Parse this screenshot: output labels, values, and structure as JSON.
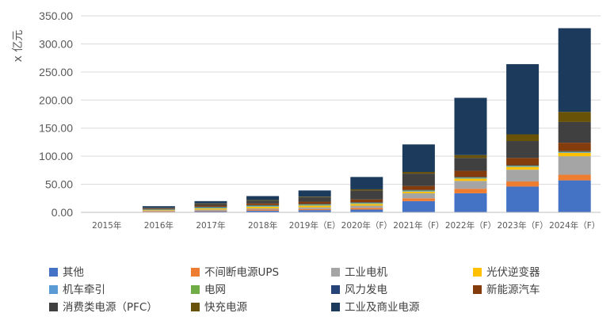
{
  "chart_data": {
    "type": "bar",
    "stacked": true,
    "ylabel": "x 亿元",
    "ylim": [
      0,
      350
    ],
    "yticks": [
      "0.00",
      "50.00",
      "100.00",
      "150.00",
      "200.00",
      "250.00",
      "300.00",
      "350.00"
    ],
    "grid": true,
    "legend_position": "bottom",
    "categories": [
      "2015年",
      "2016年",
      "2017年",
      "2018年",
      "2019年（E）",
      "2020年（F）",
      "2021年（F）",
      "2022年（F）",
      "2023年（F）",
      "2024年（F）"
    ],
    "series": [
      {
        "name": "其他",
        "color": "#4472C4",
        "values": [
          0,
          1,
          2,
          3,
          4,
          5,
          20,
          34,
          46,
          57
        ]
      },
      {
        "name": "不间断电源UPS",
        "color": "#ED7D31",
        "values": [
          0,
          1,
          1,
          2,
          2,
          3,
          5,
          8,
          9,
          10
        ]
      },
      {
        "name": "工业电机",
        "color": "#A5A5A5",
        "values": [
          0,
          1,
          2,
          2,
          3,
          4,
          9,
          14,
          21,
          33
        ]
      },
      {
        "name": "光伏逆变器",
        "color": "#FFC000",
        "values": [
          0,
          1,
          2,
          3,
          3,
          3,
          3,
          4,
          5,
          6
        ]
      },
      {
        "name": "机车牵引",
        "color": "#5B9BD5",
        "values": [
          0,
          0.5,
          1,
          1,
          1,
          1,
          1,
          1,
          1,
          1
        ]
      },
      {
        "name": "电网",
        "color": "#70AD47",
        "values": [
          0,
          0.5,
          1,
          1,
          1,
          1,
          1,
          1,
          1,
          1
        ]
      },
      {
        "name": "风力发电",
        "color": "#264478",
        "values": [
          0,
          0.5,
          1,
          1,
          1,
          1,
          1,
          1,
          1,
          1
        ]
      },
      {
        "name": "新能源汽车",
        "color": "#843C0C",
        "values": [
          0,
          1,
          2,
          3,
          4,
          5,
          7,
          11,
          13,
          15
        ]
      },
      {
        "name": "消费类电源（PFC）",
        "color": "#404040",
        "values": [
          0,
          1,
          3,
          5,
          8,
          16,
          22,
          23,
          30,
          37
        ]
      },
      {
        "name": "快充电源",
        "color": "#685207",
        "values": [
          0,
          0.5,
          1,
          1,
          1,
          2,
          3,
          5,
          12,
          18
        ]
      },
      {
        "name": "工业及商业电源",
        "color": "#1B3A5C",
        "values": [
          0,
          3,
          4,
          7,
          11,
          22,
          49,
          102,
          125,
          149
        ]
      }
    ]
  }
}
